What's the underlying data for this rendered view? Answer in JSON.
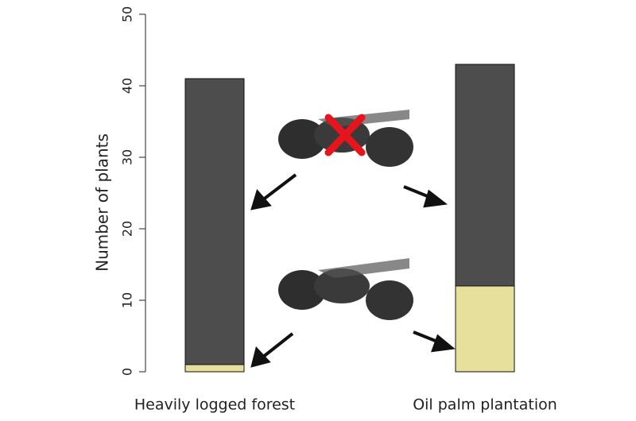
{
  "chart_data": {
    "type": "stacked_bar",
    "y_label": "Number of plants",
    "categories": [
      "Heavily logged forest",
      "Oil palm plantation"
    ],
    "series": [
      {
        "color": "#e6e09c",
        "values": [
          1,
          12
        ]
      },
      {
        "color": "#4d4d4d",
        "values": [
          40,
          31
        ]
      }
    ],
    "ylim": [
      0,
      50
    ],
    "yticks": [
      0,
      10,
      20,
      30,
      40,
      50
    ]
  }
}
